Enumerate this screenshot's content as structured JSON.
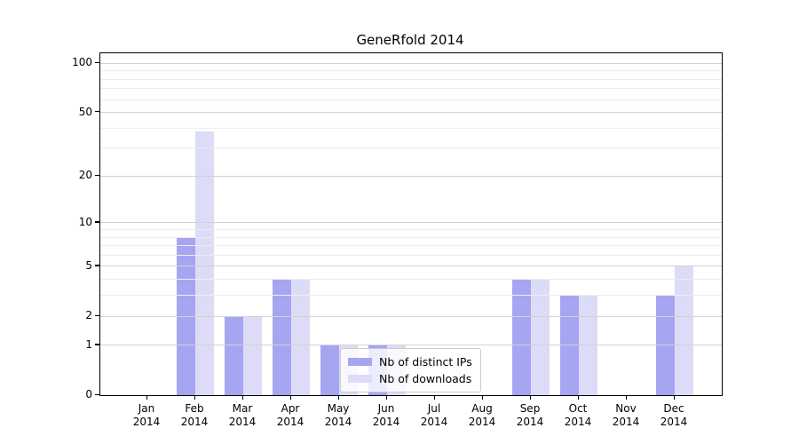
{
  "chart_data": {
    "type": "bar",
    "title": "GeneRfold 2014",
    "months": [
      "Jan",
      "Feb",
      "Mar",
      "Apr",
      "May",
      "Jun",
      "Jul",
      "Aug",
      "Sep",
      "Oct",
      "Nov",
      "Dec"
    ],
    "year_label": "2014",
    "series": [
      {
        "name": "Nb of distinct IPs",
        "color": "#a5a5f2",
        "values": [
          0,
          8,
          2,
          4,
          1,
          1,
          0,
          0,
          4,
          3,
          0,
          3
        ]
      },
      {
        "name": "Nb of downloads",
        "color": "#dcdcf8",
        "values": [
          0,
          38,
          2,
          4,
          1,
          1,
          0,
          0,
          4,
          3,
          0,
          5
        ]
      }
    ],
    "yscale": "log1p",
    "ylim": [
      0,
      115
    ],
    "yticks": [
      0,
      1,
      2,
      5,
      10,
      20,
      50,
      100
    ],
    "yticks_minor": [
      3,
      4,
      6,
      7,
      8,
      9,
      30,
      40,
      60,
      70,
      80,
      90
    ],
    "grid": "on",
    "legend_position": "lower center-left",
    "colors": {
      "grid_major": "#d2d2d2",
      "grid_minor": "#ededed",
      "spine": "#000000",
      "background": "#ffffff"
    }
  }
}
